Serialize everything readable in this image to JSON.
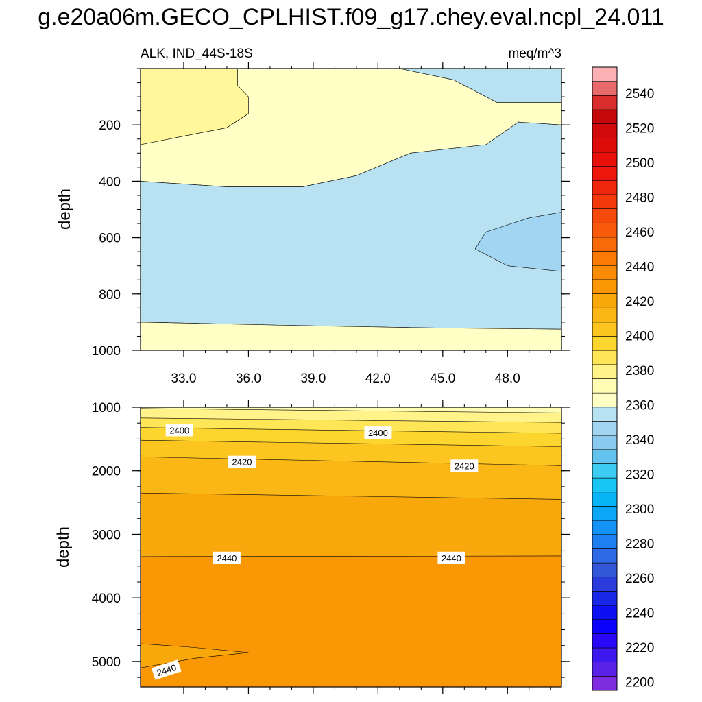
{
  "title": "g.e20a06m.GECO_CPLHIST.f09_g17.chey.eval.ncpl_24.011",
  "chart_data": {
    "type": "contour",
    "variable_label": "ALK, IND_44S-18S",
    "units_label": "meq/m^3",
    "xlabel": "",
    "xlim": [
      31.0,
      50.5
    ],
    "x_ticks": [
      33.0,
      36.0,
      39.0,
      42.0,
      45.0,
      48.0
    ],
    "x_tick_labels": [
      "33.0",
      "36.0",
      "39.0",
      "42.0",
      "45.0",
      "48.0"
    ],
    "panels": [
      {
        "name": "upper",
        "ylabel": "depth",
        "ylim": [
          0,
          1000
        ],
        "y_ticks": [
          200,
          400,
          600,
          800,
          1000
        ],
        "y_tick_labels": [
          "200",
          "400",
          "600",
          "800",
          "1000"
        ],
        "regions": [
          {
            "level_range": [
              2385,
              2390
            ],
            "color": "#fff799",
            "boundary": [
              [
                31.0,
                0
              ],
              [
                35.5,
                0
              ],
              [
                35.5,
                60
              ],
              [
                36.0,
                100
              ],
              [
                36.0,
                160
              ],
              [
                35.0,
                210
              ],
              [
                33.0,
                240
              ],
              [
                31.0,
                270
              ]
            ]
          },
          {
            "level_range": [
              2380,
              2385
            ],
            "color": "#ffffc6",
            "boundary": [
              [
                35.5,
                0
              ],
              [
                43.0,
                0
              ],
              [
                45.5,
                40
              ],
              [
                47.5,
                120
              ],
              [
                50.5,
                120
              ],
              [
                50.5,
                200
              ],
              [
                48.5,
                190
              ],
              [
                47.0,
                270
              ],
              [
                43.5,
                300
              ],
              [
                41.0,
                380
              ],
              [
                38.5,
                420
              ],
              [
                35.0,
                420
              ],
              [
                31.0,
                400
              ],
              [
                31.0,
                270
              ],
              [
                33.0,
                240
              ],
              [
                35.0,
                210
              ],
              [
                36.0,
                160
              ],
              [
                36.0,
                100
              ],
              [
                35.5,
                60
              ]
            ]
          },
          {
            "level_range": [
              2365,
              2370
            ],
            "color": "#b8e1f2",
            "boundary": [
              [
                43.0,
                0
              ],
              [
                50.5,
                0
              ],
              [
                50.5,
                120
              ],
              [
                47.5,
                120
              ],
              [
                45.5,
                40
              ]
            ]
          },
          {
            "level_range": [
              2365,
              2370
            ],
            "color": "#b8e1f2",
            "boundary": [
              [
                31.0,
                400
              ],
              [
                35.0,
                420
              ],
              [
                38.5,
                420
              ],
              [
                41.0,
                380
              ],
              [
                43.5,
                300
              ],
              [
                47.0,
                270
              ],
              [
                48.5,
                190
              ],
              [
                50.5,
                200
              ],
              [
                50.5,
                925
              ],
              [
                44.0,
                920
              ],
              [
                37.0,
                910
              ],
              [
                31.0,
                900
              ]
            ]
          },
          {
            "level_range": [
              2360,
              2365
            ],
            "color": "#a2d5f2",
            "boundary": [
              [
                50.5,
                510
              ],
              [
                49.0,
                530
              ],
              [
                47.0,
                580
              ],
              [
                46.5,
                640
              ],
              [
                48.0,
                700
              ],
              [
                50.5,
                720
              ]
            ]
          },
          {
            "level_range": [
              2380,
              2385
            ],
            "color": "#ffffc6",
            "boundary": [
              [
                31.0,
                900
              ],
              [
                37.0,
                910
              ],
              [
                44.0,
                920
              ],
              [
                50.5,
                925
              ],
              [
                50.5,
                1000
              ],
              [
                31.0,
                1000
              ]
            ]
          }
        ],
        "contour_labels": []
      },
      {
        "name": "lower",
        "ylabel": "depth",
        "ylim": [
          1000,
          5400
        ],
        "y_ticks": [
          1000,
          2000,
          3000,
          4000,
          5000
        ],
        "y_tick_labels": [
          "1000",
          "2000",
          "3000",
          "4000",
          "5000"
        ],
        "bands": [
          {
            "color": "#fffcb4",
            "from": [
              1000,
              1000
            ],
            "to": [
              1020,
              1090
            ]
          },
          {
            "color": "#fff38a",
            "from": [
              1020,
              1090
            ],
            "to": [
              1170,
              1240
            ]
          },
          {
            "color": "#fee656",
            "from": [
              1170,
              1240
            ],
            "to": [
              1320,
              1410
            ]
          },
          {
            "color": "#fdd52f",
            "from": [
              1320,
              1410
            ],
            "to": [
              1520,
              1620
            ]
          },
          {
            "color": "#fcc520",
            "from": [
              1520,
              1620
            ],
            "to": [
              1780,
              1920
            ]
          },
          {
            "color": "#fbb716",
            "from": [
              1780,
              1920
            ],
            "to": [
              2350,
              2450
            ]
          },
          {
            "color": "#f9a80c",
            "from": [
              2350,
              2450
            ],
            "to": [
              3350,
              3340
            ]
          },
          {
            "color": "#f99705",
            "from": [
              3350,
              3340
            ],
            "to": [
              5400,
              5400
            ]
          }
        ],
        "tongue": {
          "color": "#f9a80c",
          "boundary": [
            [
              31.0,
              4720
            ],
            [
              33.5,
              4780
            ],
            [
              36.0,
              4860
            ],
            [
              33.5,
              4950
            ],
            [
              31.0,
              5100
            ]
          ]
        },
        "contour_labels": [
          {
            "text": "2400",
            "x": 32.8,
            "y": 1360
          },
          {
            "text": "2400",
            "x": 42.0,
            "y": 1400
          },
          {
            "text": "2420",
            "x": 35.7,
            "y": 1860
          },
          {
            "text": "2420",
            "x": 46.0,
            "y": 1920
          },
          {
            "text": "2440",
            "x": 35.0,
            "y": 3370
          },
          {
            "text": "2440",
            "x": 45.4,
            "y": 3370
          },
          {
            "text": "2440",
            "x": 32.2,
            "y": 5130,
            "angle": -18
          }
        ]
      }
    ],
    "colorbar": {
      "levels": [
        2195,
        2200,
        2205,
        2210,
        2215,
        2220,
        2225,
        2230,
        2235,
        2240,
        2245,
        2250,
        2255,
        2260,
        2265,
        2270,
        2275,
        2280,
        2285,
        2290,
        2295,
        2300,
        2305,
        2310,
        2315,
        2320,
        2325,
        2330,
        2335,
        2340,
        2345,
        2350,
        2355,
        2360,
        2365,
        2370,
        2375,
        2380,
        2385,
        2390,
        2395,
        2400,
        2405,
        2410,
        2415,
        2420,
        2425,
        2430,
        2435,
        2440,
        2445,
        2450,
        2455,
        2460,
        2465,
        2470,
        2475,
        2480,
        2485,
        2490,
        2495,
        2500,
        2505,
        2510,
        2515,
        2520,
        2525,
        2530,
        2535,
        2540,
        2545,
        2550,
        2555
      ],
      "colors": [
        "#7f2be0",
        "#5a21e6",
        "#3c18ee",
        "#2808f7",
        "#0a00fb",
        "#0d10f1",
        "#1a26e5",
        "#2a3cdc",
        "#3258d8",
        "#2f6ae6",
        "#1f7ff0",
        "#1393f5",
        "#0ba6f6",
        "#08b5f4",
        "#18c5f4",
        "#3dcdf2",
        "#62c4ee",
        "#89caee",
        "#a2d5f2",
        "#b8e1f2",
        "#ffffc6",
        "#fffcb4",
        "#fff38a",
        "#fee656",
        "#fdd52f",
        "#fcc520",
        "#fbb716",
        "#f9a80c",
        "#f99705",
        "#f98b05",
        "#f97b06",
        "#f86a08",
        "#f75a0b",
        "#f54a0c",
        "#f3380c",
        "#f0260c",
        "#ee170b",
        "#e8100b",
        "#dc0c0a",
        "#d00a0a",
        "#c40708",
        "#d92e2e",
        "#e86a6a",
        "#fbb0b4"
      ],
      "labels": [
        "2200",
        "2220",
        "2240",
        "2260",
        "2280",
        "2300",
        "2320",
        "2340",
        "2360",
        "2380",
        "2400",
        "2420",
        "2440",
        "2460",
        "2480",
        "2500",
        "2520",
        "2540"
      ],
      "label_values": [
        2200,
        2220,
        2240,
        2260,
        2280,
        2300,
        2320,
        2340,
        2360,
        2380,
        2400,
        2420,
        2440,
        2460,
        2480,
        2500,
        2520,
        2540
      ]
    }
  }
}
